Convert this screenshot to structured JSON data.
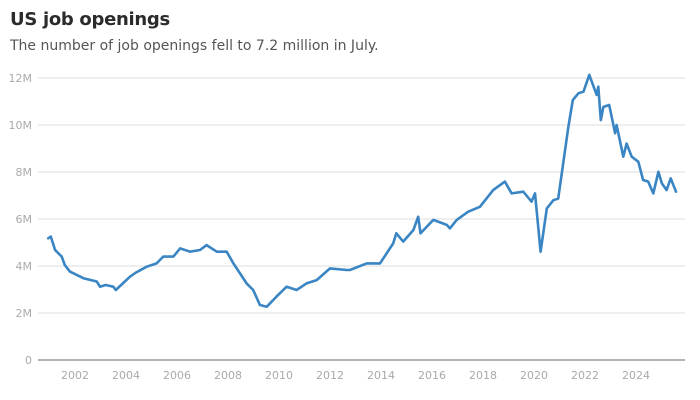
{
  "chart_data": {
    "type": "line",
    "title": "US job openings",
    "subtitle": "The number of job openings fell to 7.2 million in July.",
    "xlabel": "",
    "ylabel": "",
    "xlim": [
      2000.9,
      2025.6
    ],
    "ylim": [
      0,
      12
    ],
    "grid": true,
    "line_color": "#3a85c3",
    "y_ticks": [
      {
        "v": 0,
        "label": "0"
      },
      {
        "v": 2,
        "label": "2M"
      },
      {
        "v": 4,
        "label": "4M"
      },
      {
        "v": 6,
        "label": "6M"
      },
      {
        "v": 8,
        "label": "8M"
      },
      {
        "v": 10,
        "label": "10M"
      },
      {
        "v": 12,
        "label": "12M"
      }
    ],
    "x_ticks": [
      {
        "v": 2002,
        "label": "2002"
      },
      {
        "v": 2004,
        "label": "2004"
      },
      {
        "v": 2006,
        "label": "2006"
      },
      {
        "v": 2008,
        "label": "2008"
      },
      {
        "v": 2010,
        "label": "2010"
      },
      {
        "v": 2012,
        "label": "2012"
      },
      {
        "v": 2014,
        "label": "2014"
      },
      {
        "v": 2016,
        "label": "2016"
      },
      {
        "v": 2018,
        "label": "2018"
      },
      {
        "v": 2020,
        "label": "2020"
      },
      {
        "v": 2022,
        "label": "2022"
      },
      {
        "v": 2024,
        "label": "2024"
      }
    ],
    "series": [
      {
        "name": "Job openings (millions)",
        "x": [
          2000.95,
          2001.05,
          2001.22,
          2001.48,
          2001.6,
          2001.8,
          2002.33,
          2002.85,
          2002.98,
          2003.2,
          2003.5,
          2003.6,
          2004.16,
          2004.42,
          2004.81,
          2005.2,
          2005.46,
          2005.86,
          2006.12,
          2006.51,
          2006.9,
          2007.16,
          2007.56,
          2007.95,
          2008.21,
          2008.73,
          2008.99,
          2009.25,
          2009.52,
          2009.9,
          2010.3,
          2010.69,
          2011.08,
          2011.48,
          2012.0,
          2012.65,
          2012.78,
          2013.44,
          2013.96,
          2014.48,
          2014.6,
          2014.87,
          2015.27,
          2015.46,
          2015.55,
          2016.05,
          2016.58,
          2016.7,
          2016.97,
          2017.42,
          2017.88,
          2018.4,
          2018.86,
          2019.12,
          2019.58,
          2019.9,
          2020.04,
          2020.26,
          2020.5,
          2020.76,
          2020.95,
          2021.35,
          2021.52,
          2021.74,
          2021.94,
          2022.17,
          2022.46,
          2022.52,
          2022.62,
          2022.72,
          2022.95,
          2023.18,
          2023.24,
          2023.5,
          2023.63,
          2023.83,
          2024.09,
          2024.28,
          2024.48,
          2024.68,
          2024.88,
          2025.01,
          2025.2,
          2025.36,
          2025.57
        ],
        "values": [
          5.18,
          5.25,
          4.68,
          4.4,
          4.04,
          3.76,
          3.48,
          3.34,
          3.12,
          3.19,
          3.12,
          2.98,
          3.55,
          3.74,
          3.97,
          4.11,
          4.4,
          4.4,
          4.75,
          4.61,
          4.68,
          4.89,
          4.61,
          4.61,
          4.11,
          3.26,
          2.98,
          2.34,
          2.27,
          2.7,
          3.12,
          2.98,
          3.26,
          3.4,
          3.9,
          3.83,
          3.83,
          4.11,
          4.11,
          4.96,
          5.39,
          5.04,
          5.53,
          6.1,
          5.39,
          5.96,
          5.75,
          5.6,
          5.96,
          6.31,
          6.52,
          7.23,
          7.59,
          7.09,
          7.16,
          6.74,
          7.09,
          4.61,
          6.45,
          6.8,
          6.87,
          9.93,
          11.06,
          11.35,
          11.42,
          12.13,
          11.28,
          11.63,
          10.21,
          10.77,
          10.85,
          9.65,
          10.0,
          8.65,
          9.21,
          8.65,
          8.44,
          7.66,
          7.59,
          7.09,
          8.01,
          7.52,
          7.23,
          7.73,
          7.16
        ]
      }
    ]
  }
}
